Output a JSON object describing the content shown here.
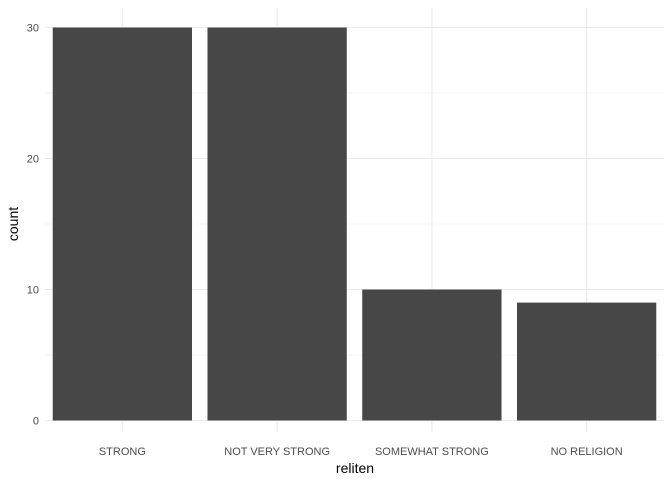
{
  "chart_data": {
    "type": "bar",
    "categories": [
      "STRONG",
      "NOT VERY STRONG",
      "SOMEWHAT STRONG",
      "NO RELIGION"
    ],
    "values": [
      30,
      30,
      10,
      9
    ],
    "title": "",
    "xlabel": "reliten",
    "ylabel": "count",
    "ylim": [
      0,
      30
    ],
    "yticks": [
      0,
      10,
      20,
      30
    ],
    "grid": true,
    "legend": "none",
    "colors": {
      "bar": "#474747",
      "grid_major": "#ebebeb",
      "grid_minor": "#f5f5f5",
      "background": "#ffffff"
    }
  }
}
